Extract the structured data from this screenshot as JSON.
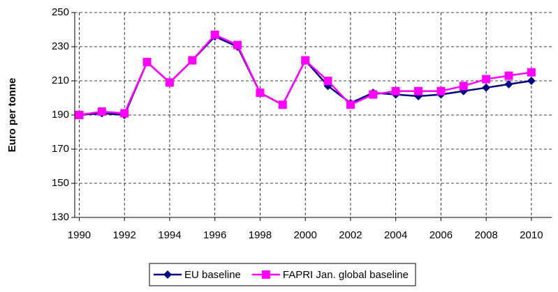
{
  "chart_data": {
    "type": "line",
    "y_label": "Euro per tonne",
    "x": [
      1990,
      1991,
      1992,
      1993,
      1994,
      1995,
      1996,
      1997,
      1998,
      1999,
      2000,
      2001,
      2002,
      2003,
      2004,
      2005,
      2006,
      2007,
      2008,
      2009,
      2010
    ],
    "series": [
      {
        "name": "EU baseline",
        "color": "#000080",
        "marker": "diamond",
        "values": [
          190,
          191,
          190,
          221,
          209,
          222,
          236,
          230,
          203,
          196,
          222,
          207,
          197,
          203,
          202,
          201,
          202,
          204,
          206,
          208,
          210
        ]
      },
      {
        "name": "FAPRI Jan. global baseline",
        "color": "#ff00ff",
        "marker": "square",
        "values": [
          190,
          192,
          191,
          221,
          209,
          222,
          237,
          231,
          203,
          196,
          222,
          210,
          196,
          202,
          204,
          204,
          204,
          207,
          211,
          213,
          215
        ]
      }
    ],
    "xlim": [
      1989.8,
      2010.9
    ],
    "xticks": [
      1990,
      1992,
      1994,
      1996,
      1998,
      2000,
      2002,
      2004,
      2006,
      2008,
      2010
    ],
    "ylim": [
      130,
      250
    ],
    "yticks": [
      130,
      150,
      170,
      190,
      210,
      230,
      250
    ],
    "grid": true,
    "legend": "bottom"
  }
}
